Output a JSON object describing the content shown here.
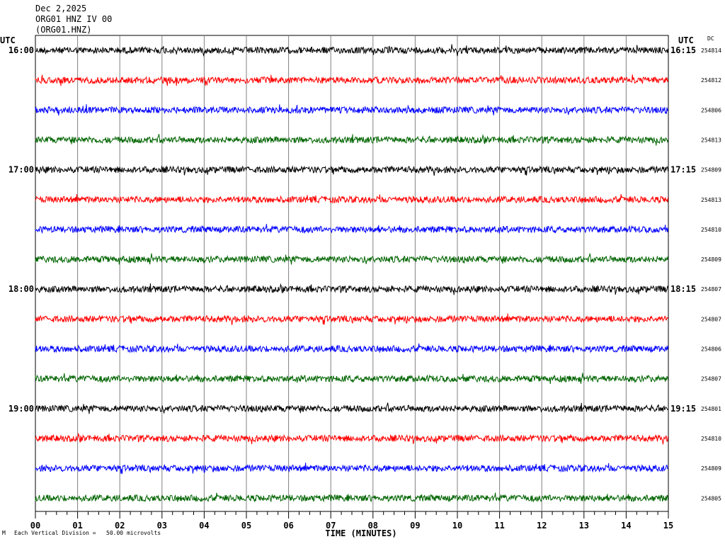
{
  "header": {
    "date": "Dec 2,2025",
    "station_line": "ORG01 HNZ IV 00",
    "channel_line": "(ORG01.HNZ)"
  },
  "footer": {
    "corner_mark": "M",
    "scale_note": "Each Vertical Division =   50.00 microvolts"
  },
  "colors": {
    "line1": "#000000",
    "line2": "#ff0000",
    "line3": "#0000ff",
    "line4": "#006400",
    "grid": "#808080"
  },
  "chart_data": {
    "type": "line",
    "title": "",
    "xlabel": "TIME (MINUTES)",
    "left_axis_label": "UTC",
    "right_axis_label": "UTC",
    "right_column_label": "DC",
    "x_ticks": [
      "00",
      "01",
      "02",
      "03",
      "04",
      "05",
      "06",
      "07",
      "08",
      "09",
      "10",
      "11",
      "12",
      "13",
      "14",
      "15"
    ],
    "xlim": [
      0,
      15
    ],
    "grid": true,
    "rows": [
      {
        "left": "16:00",
        "right": "16:15",
        "dc": "254814",
        "color": "black"
      },
      {
        "left": "",
        "right": "",
        "dc": "254812",
        "color": "red"
      },
      {
        "left": "",
        "right": "",
        "dc": "254806",
        "color": "blue"
      },
      {
        "left": "",
        "right": "",
        "dc": "254813",
        "color": "green"
      },
      {
        "left": "17:00",
        "right": "17:15",
        "dc": "254809",
        "color": "black"
      },
      {
        "left": "",
        "right": "",
        "dc": "254813",
        "color": "red"
      },
      {
        "left": "",
        "right": "",
        "dc": "254810",
        "color": "blue"
      },
      {
        "left": "",
        "right": "",
        "dc": "254809",
        "color": "green"
      },
      {
        "left": "18:00",
        "right": "18:15",
        "dc": "254807",
        "color": "black"
      },
      {
        "left": "",
        "right": "",
        "dc": "254807",
        "color": "red"
      },
      {
        "left": "",
        "right": "",
        "dc": "254806",
        "color": "blue"
      },
      {
        "left": "",
        "right": "",
        "dc": "254807",
        "color": "green"
      },
      {
        "left": "19:00",
        "right": "19:15",
        "dc": "254801",
        "color": "black"
      },
      {
        "left": "",
        "right": "",
        "dc": "254810",
        "color": "red"
      },
      {
        "left": "",
        "right": "",
        "dc": "254809",
        "color": "blue"
      },
      {
        "left": "",
        "right": "",
        "dc": "254805",
        "color": "green"
      }
    ]
  }
}
